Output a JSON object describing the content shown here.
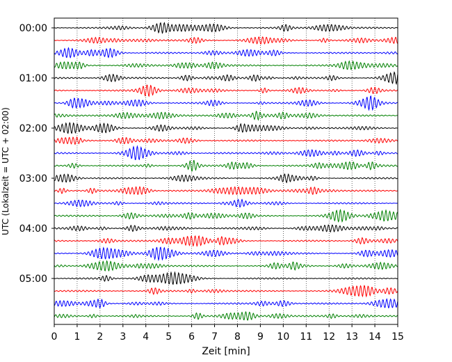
{
  "chart_data": {
    "type": "line",
    "subtype": "helicorder",
    "title": "",
    "xlabel": "Zeit  [min]",
    "ylabel": "UTC (Lokalzeit = UTC + 02:00)",
    "xlim": [
      0,
      15
    ],
    "x_ticks": [
      "0",
      "1",
      "2",
      "3",
      "4",
      "5",
      "6",
      "7",
      "8",
      "9",
      "10",
      "11",
      "12",
      "13",
      "14",
      "15"
    ],
    "y_ticks": [
      "00:00",
      "01:00",
      "02:00",
      "03:00",
      "04:00",
      "05:00"
    ],
    "trace_count": 24,
    "trace_minutes": 15,
    "trace_colors": [
      "#000000",
      "#ff0000",
      "#0000ff",
      "#008000"
    ],
    "grid": "vertical dotted lines at each minute",
    "legend": "none"
  }
}
